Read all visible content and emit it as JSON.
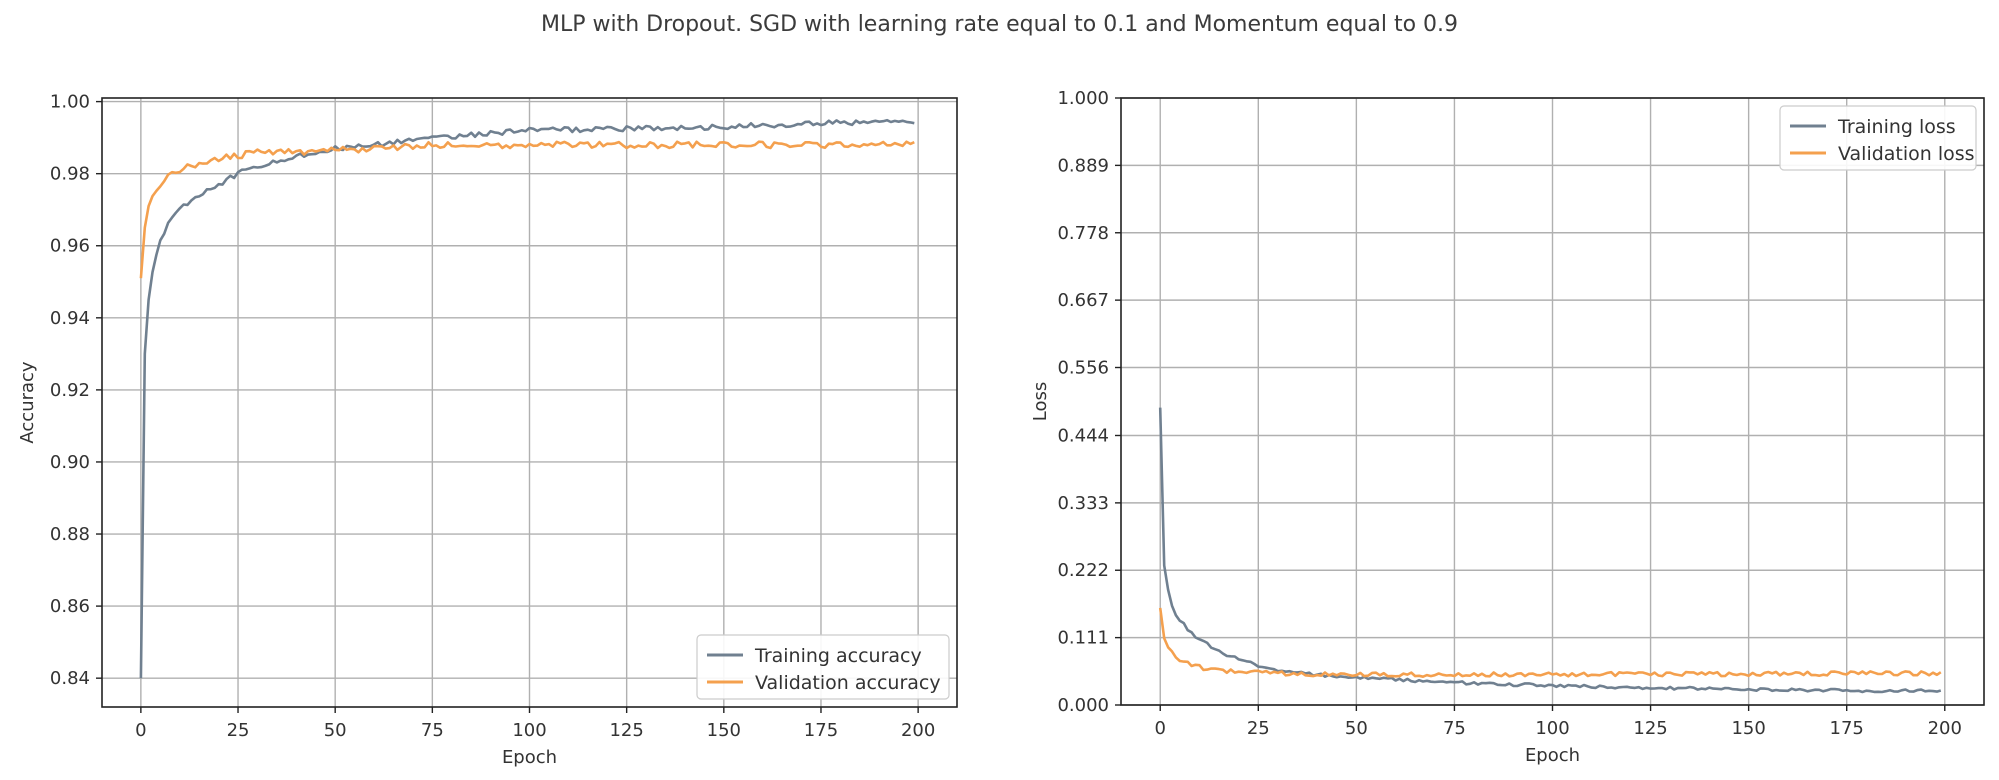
{
  "figure": {
    "title": "MLP with Dropout. SGD with learning rate equal to 0.1 and Momentum equal to 0.9"
  },
  "colors": {
    "training": "#708090",
    "validation": "#f4a04e",
    "grid": "#b0b0b0",
    "axis": "#222222"
  },
  "chart_data": [
    {
      "type": "line",
      "xlabel": "Epoch",
      "ylabel": "Accuracy",
      "xlim": [
        -10,
        210
      ],
      "ylim": [
        0.832,
        1.001
      ],
      "xticks": [
        0,
        25,
        50,
        75,
        100,
        125,
        150,
        175,
        200
      ],
      "yticks": [
        0.84,
        0.86,
        0.88,
        0.9,
        0.92,
        0.94,
        0.96,
        0.98,
        1.0
      ],
      "ytick_labels": [
        "0.84",
        "0.86",
        "0.88",
        "0.90",
        "0.92",
        "0.94",
        "0.96",
        "0.98",
        "1.00"
      ],
      "grid": true,
      "legend_position": "bottom-right",
      "series": [
        {
          "name": "Training accuracy",
          "color_key": "training",
          "x": [
            0,
            1,
            2,
            3,
            4,
            5,
            7,
            10,
            15,
            20,
            25,
            30,
            40,
            50,
            60,
            75,
            100,
            125,
            150,
            175,
            199
          ],
          "y": [
            0.84,
            0.93,
            0.945,
            0.953,
            0.958,
            0.962,
            0.966,
            0.97,
            0.974,
            0.977,
            0.98,
            0.982,
            0.985,
            0.987,
            0.988,
            0.99,
            0.992,
            0.9925,
            0.993,
            0.994,
            0.9945
          ]
        },
        {
          "name": "Validation accuracy",
          "color_key": "validation",
          "x": [
            0,
            1,
            2,
            3,
            5,
            7,
            10,
            15,
            20,
            25,
            30,
            40,
            50,
            60,
            75,
            100,
            125,
            150,
            175,
            199
          ],
          "y": [
            0.951,
            0.965,
            0.971,
            0.974,
            0.977,
            0.979,
            0.981,
            0.983,
            0.984,
            0.985,
            0.986,
            0.986,
            0.9865,
            0.987,
            0.988,
            0.988,
            0.988,
            0.988,
            0.988,
            0.9885
          ]
        }
      ]
    },
    {
      "type": "line",
      "xlabel": "Epoch",
      "ylabel": "Loss",
      "xlim": [
        -10,
        210
      ],
      "ylim": [
        0.0,
        1.0
      ],
      "xticks": [
        0,
        25,
        50,
        75,
        100,
        125,
        150,
        175,
        200
      ],
      "yticks": [
        0.0,
        0.111,
        0.222,
        0.333,
        0.444,
        0.556,
        0.667,
        0.778,
        0.889,
        1.0
      ],
      "ytick_labels": [
        "0.000",
        "0.111",
        "0.222",
        "0.333",
        "0.444",
        "0.556",
        "0.667",
        "0.778",
        "0.889",
        "1.000"
      ],
      "grid": true,
      "legend_position": "top-right",
      "series": [
        {
          "name": "Training loss",
          "color_key": "training",
          "x": [
            0,
            1,
            2,
            3,
            4,
            5,
            7,
            10,
            15,
            20,
            25,
            30,
            40,
            50,
            75,
            100,
            125,
            150,
            175,
            199
          ],
          "y": [
            0.49,
            0.23,
            0.19,
            0.165,
            0.15,
            0.14,
            0.125,
            0.108,
            0.088,
            0.075,
            0.065,
            0.057,
            0.05,
            0.045,
            0.037,
            0.032,
            0.028,
            0.026,
            0.024,
            0.023
          ]
        },
        {
          "name": "Validation loss",
          "color_key": "validation",
          "x": [
            0,
            1,
            2,
            3,
            5,
            7,
            10,
            15,
            20,
            25,
            30,
            50,
            75,
            100,
            125,
            150,
            175,
            199
          ],
          "y": [
            0.16,
            0.11,
            0.095,
            0.085,
            0.075,
            0.068,
            0.062,
            0.057,
            0.055,
            0.053,
            0.052,
            0.05,
            0.05,
            0.05,
            0.051,
            0.051,
            0.052,
            0.052
          ]
        }
      ]
    }
  ]
}
